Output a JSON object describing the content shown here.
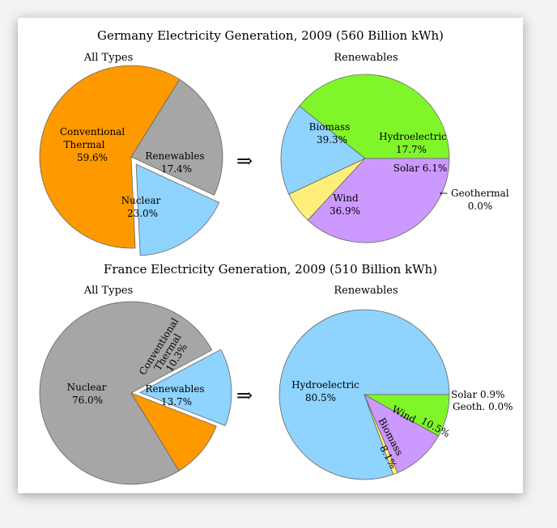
{
  "chart_data": [
    {
      "type": "pie",
      "title": "Germany Electricity Generation, 2009 (560 Billion kWh)",
      "subtitle": "All Types",
      "slices": [
        {
          "name": "Conventional Thermal",
          "value": 59.6,
          "label": "59.6%",
          "color": "#ff9900"
        },
        {
          "name": "Renewables",
          "value": 17.4,
          "label": "17.4%",
          "color": "#8fd3ff",
          "exploded": true
        },
        {
          "name": "Nuclear",
          "value": 23.0,
          "label": "23.0%",
          "color": "#a6a6a6"
        }
      ]
    },
    {
      "type": "pie",
      "subtitle": "Renewables",
      "slices": [
        {
          "name": "Biomass",
          "value": 39.3,
          "label": "39.3%",
          "color": "#7ff52a"
        },
        {
          "name": "Hydroelectric",
          "value": 17.7,
          "label": "17.7%",
          "color": "#8fd3ff"
        },
        {
          "name": "Solar",
          "value": 6.1,
          "label": "6.1%",
          "color": "#ffef7a"
        },
        {
          "name": "Geothermal",
          "value": 0.0,
          "label": "0.0%",
          "color": "#ffef7a"
        },
        {
          "name": "Wind",
          "value": 36.9,
          "label": "36.9%",
          "color": "#cc99ff"
        }
      ]
    },
    {
      "type": "pie",
      "title": "France Electricity Generation, 2009 (510 Billion kWh)",
      "subtitle": "All Types",
      "slices": [
        {
          "name": "Nuclear",
          "value": 76.0,
          "label": "76.0%",
          "color": "#a6a6a6"
        },
        {
          "name": "Conventional Thermal",
          "value": 10.3,
          "label": "10.3%",
          "color": "#ff9900"
        },
        {
          "name": "Renewables",
          "value": 13.7,
          "label": "13.7%",
          "color": "#8fd3ff",
          "exploded": true
        }
      ]
    },
    {
      "type": "pie",
      "subtitle": "Renewables",
      "slices": [
        {
          "name": "Hydroelectric",
          "value": 80.5,
          "label": "80.5%",
          "color": "#8fd3ff"
        },
        {
          "name": "Solar",
          "value": 0.9,
          "label": "0.9%",
          "color": "#ffef7a"
        },
        {
          "name": "Geoth.",
          "value": 0.0,
          "label": "0.0%",
          "color": "#ffef7a"
        },
        {
          "name": "Wind",
          "value": 10.5,
          "label": "10.5%",
          "color": "#cc99ff"
        },
        {
          "name": "Biomass",
          "value": 8.1,
          "label": "8.1%",
          "color": "#7ff52a"
        }
      ]
    }
  ],
  "labels": {
    "de_all": {
      "thermal_1": "Conventional",
      "thermal_2": "Thermal",
      "thermal_pct": "59.6%",
      "renew": "Renewables",
      "renew_pct": "17.4%",
      "nuclear": "Nuclear",
      "nuclear_pct": "23.0%"
    },
    "de_ren": {
      "biomass": "Biomass",
      "biomass_pct": "39.3%",
      "hydro": "Hydroelectric",
      "hydro_pct": "17.7%",
      "solar": "Solar 6.1%",
      "wind": "Wind",
      "wind_pct": "36.9%",
      "geo": "Geothermal",
      "geo_pct": "0.0%"
    },
    "fr_all": {
      "nuclear": "Nuclear",
      "nuclear_pct": "76.0%",
      "thermal_1": "Conventional",
      "thermal_2": "Thermal",
      "thermal_pct": "10.3%",
      "renew": "Renewables",
      "renew_pct": "13.7%"
    },
    "fr_ren": {
      "hydro": "Hydroelectric",
      "hydro_pct": "80.5%",
      "wind": "Wind",
      "wind_pct": "10.5%",
      "biomass": "Biomass",
      "biomass_pct": "8.1%",
      "solar": "Solar  0.9%",
      "geo": "Geoth.  0.0%"
    }
  },
  "arrow_symbol": "⇒",
  "geo_arrow": "←"
}
